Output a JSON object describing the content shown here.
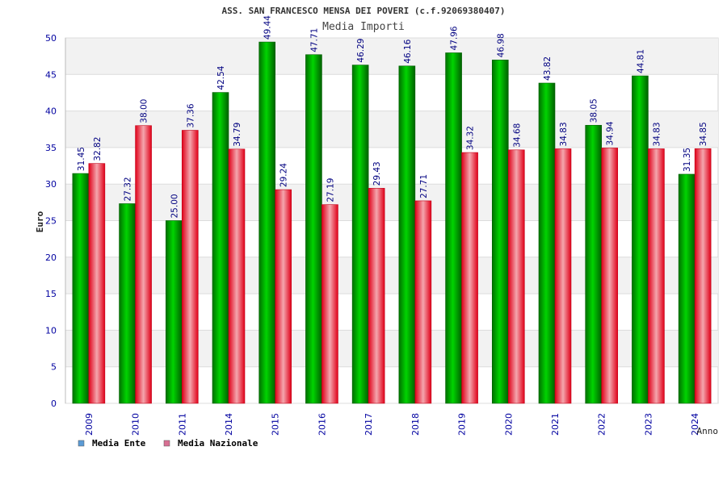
{
  "chart_data": {
    "type": "bar",
    "title": "ASS. SAN FRANCESCO MENSA DEI POVERI (c.f.92069380407)",
    "subtitle": "Media Importi",
    "xlabel": "Anno",
    "ylabel": "Euro",
    "ylim": [
      0,
      50
    ],
    "yticks": [
      "0",
      "5",
      "10",
      "15",
      "20",
      "25",
      "30",
      "35",
      "40",
      "45",
      "50"
    ],
    "grid": true,
    "legend_position": "bottom-left",
    "categories": [
      "2009",
      "2010",
      "2011",
      "2014",
      "2015",
      "2016",
      "2017",
      "2018",
      "2019",
      "2020",
      "2021",
      "2022",
      "2023",
      "2024"
    ],
    "series": [
      {
        "name": "Media Ente",
        "legend_color": "#5b9bd5",
        "bar_color": "#00b400",
        "values": [
          31.45,
          27.32,
          25.0,
          42.54,
          49.44,
          47.71,
          46.29,
          46.16,
          47.96,
          46.98,
          43.82,
          38.05,
          44.81,
          31.35
        ],
        "labels": [
          "31.45",
          "27.32",
          "25.00",
          "42.54",
          "49.44",
          "47.71",
          "46.29",
          "46.16",
          "47.96",
          "46.98",
          "43.82",
          "38.05",
          "44.81",
          "31.35"
        ]
      },
      {
        "name": "Media Nazionale",
        "legend_color": "#d87093",
        "bar_color": "#e8102a",
        "values": [
          32.82,
          38.0,
          37.36,
          34.79,
          29.24,
          27.19,
          29.43,
          27.71,
          34.32,
          34.68,
          34.83,
          34.94,
          34.83,
          34.85
        ],
        "labels": [
          "32.82",
          "38.00",
          "37.36",
          "34.79",
          "29.24",
          "27.19",
          "29.43",
          "27.71",
          "34.32",
          "34.68",
          "34.83",
          "34.94",
          "34.83",
          "34.85"
        ]
      }
    ],
    "colors": {
      "axis_text": "#0000a0",
      "value_label": "#000080",
      "grid_band": "#f2f2f2",
      "grid_line": "#dcdcdc"
    }
  }
}
